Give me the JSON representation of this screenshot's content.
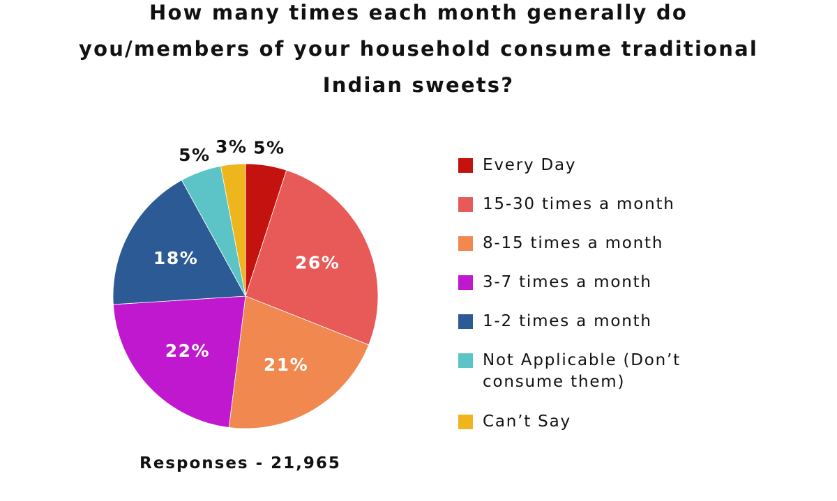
{
  "chart_data": {
    "type": "pie",
    "title_lines": [
      "How many times each month generally do",
      "you/members of your household consume traditional",
      "Indian sweets?"
    ],
    "categories": [
      "Every Day",
      "15-30 times a month",
      "8-15 times a month",
      "3-7 times a month",
      "1-2 times a month",
      "Not Applicable (Don’t consume them)",
      "Can’t Say"
    ],
    "legend_lines": [
      [
        "Every Day"
      ],
      [
        "15-30 times a month"
      ],
      [
        "8-15 times a month"
      ],
      [
        "3-7 times a month"
      ],
      [
        "1-2 times a month"
      ],
      [
        "Not Applicable (Don’t",
        "consume them)"
      ],
      [
        "Can’t Say"
      ]
    ],
    "values": [
      5,
      26,
      21,
      22,
      18,
      5,
      3
    ],
    "data_labels": [
      "5%",
      "26%",
      "21%",
      "22%",
      "18%",
      "5%",
      "3%"
    ],
    "colors": [
      "#c4120e",
      "#e75a58",
      "#f08850",
      "#bf18cf",
      "#2b5a94",
      "#5cc3c6",
      "#efb51c"
    ],
    "legend_placement": "right",
    "footer": "Responses - 21,965"
  }
}
